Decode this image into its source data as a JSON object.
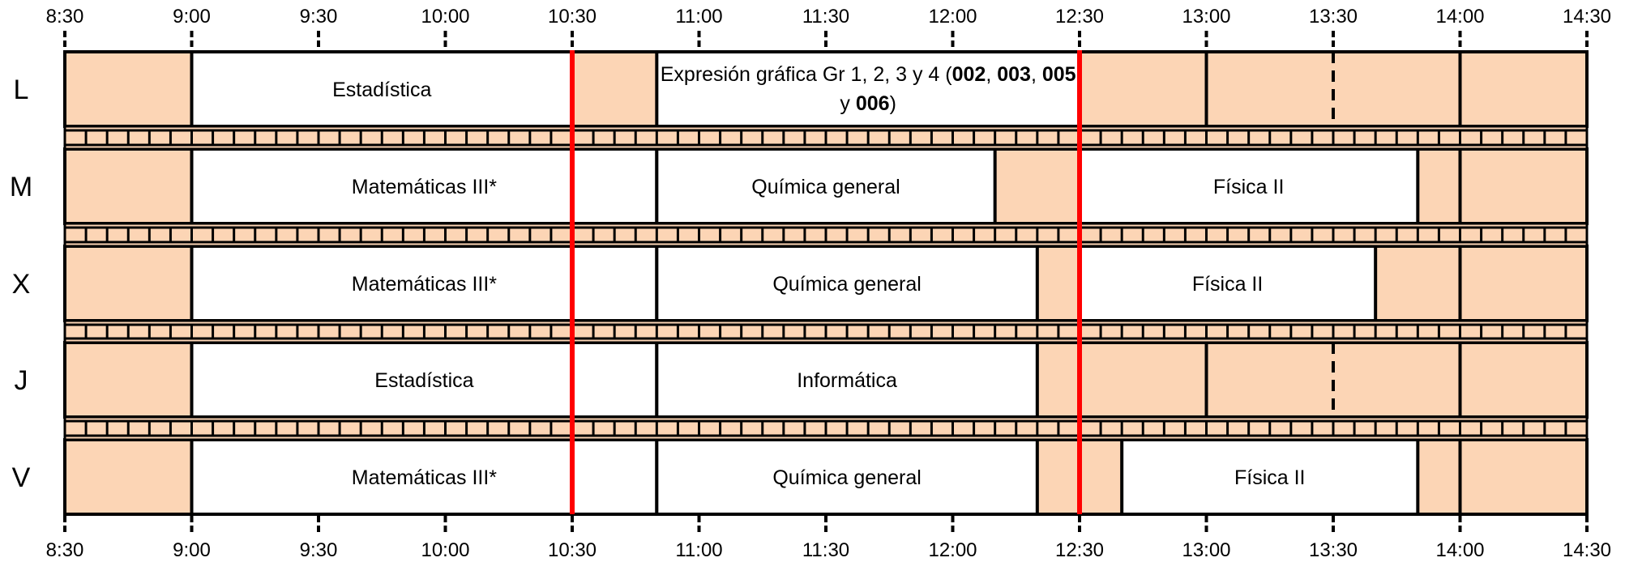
{
  "time_ticks": [
    "8:30",
    "9:00",
    "9:30",
    "10:00",
    "10:30",
    "11:00",
    "11:30",
    "12:00",
    "12:30",
    "13:00",
    "13:30",
    "14:00",
    "14:30"
  ],
  "colors": {
    "free": "#fcd5b5",
    "class": "#ffffff",
    "line": "#000000",
    "break_line": "#ff0000"
  },
  "days": [
    {
      "label": "L",
      "classes": [
        {
          "name": "Estadística",
          "start": "9:00",
          "end": "10:30"
        },
        {
          "lines": [
            [
              {
                "t": "Expresión gráfica Gr 1, 2, 3 y 4 ("
              },
              {
                "t": "002",
                "b": true
              },
              {
                "t": ", "
              },
              {
                "t": "003",
                "b": true
              },
              {
                "t": ", "
              },
              {
                "t": "005",
                "b": true
              }
            ],
            [
              {
                "t": "y "
              },
              {
                "t": "006",
                "b": true
              },
              {
                "t": ")"
              }
            ]
          ],
          "start": "10:50",
          "end": "12:30"
        }
      ],
      "dividers": [
        "13:00",
        "14:00"
      ],
      "dashed": [
        "13:30"
      ]
    },
    {
      "label": "M",
      "classes": [
        {
          "name": "Matemáticas III*",
          "start": "9:00",
          "end": "10:50"
        },
        {
          "name": "Química general",
          "start": "10:50",
          "end": "12:10"
        },
        {
          "name": "Física II",
          "start": "12:30",
          "end": "13:50"
        }
      ],
      "dividers": [
        "14:00"
      ],
      "dashed": []
    },
    {
      "label": "X",
      "classes": [
        {
          "name": "Matemáticas III*",
          "start": "9:00",
          "end": "10:50"
        },
        {
          "name": "Química general",
          "start": "10:50",
          "end": "12:20"
        },
        {
          "name": "Física II",
          "start": "12:30",
          "end": "13:40"
        }
      ],
      "dividers": [
        "14:00"
      ],
      "dashed": []
    },
    {
      "label": "J",
      "classes": [
        {
          "name": "Estadística",
          "start": "9:00",
          "end": "10:50"
        },
        {
          "name": "Informática",
          "start": "10:50",
          "end": "12:20"
        }
      ],
      "dividers": [
        "13:00",
        "14:00"
      ],
      "dashed": [
        "13:30"
      ]
    },
    {
      "label": "V",
      "classes": [
        {
          "name": "Matemáticas III*",
          "start": "9:00",
          "end": "10:50"
        },
        {
          "name": "Química general",
          "start": "10:50",
          "end": "12:20"
        },
        {
          "name": "Física II",
          "start": "12:40",
          "end": "13:50"
        }
      ],
      "dividers": [
        "14:00"
      ],
      "dashed": []
    }
  ],
  "break_lines": [
    "10:30",
    "12:30"
  ]
}
